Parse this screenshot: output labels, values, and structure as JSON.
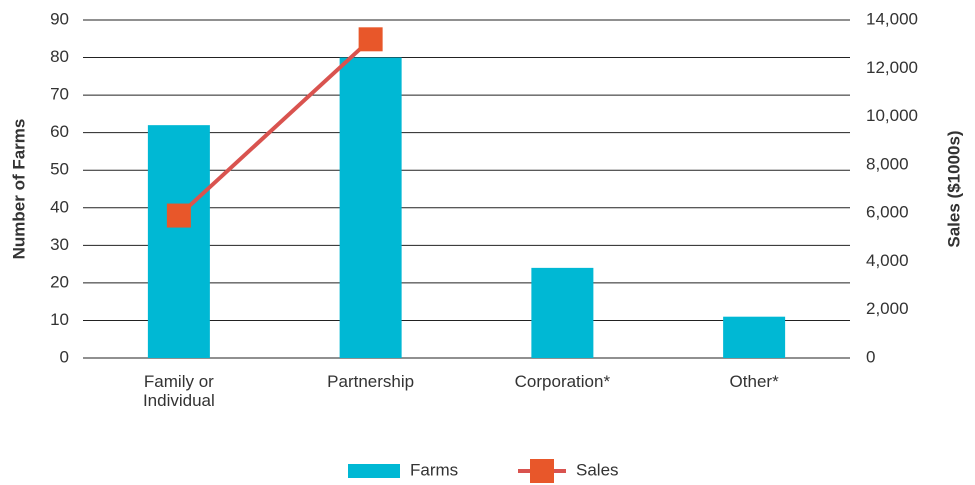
{
  "chart_data": {
    "type": "bar",
    "categories": [
      "Family or Individual",
      "Partnership",
      "Corporation*",
      "Other*"
    ],
    "series": [
      {
        "name": "Farms",
        "type": "bar",
        "color": "#00b8d4",
        "values": [
          62,
          80,
          24,
          11
        ]
      },
      {
        "name": "Sales",
        "type": "line",
        "axis": "y2",
        "color": "#d9534f",
        "marker_color": "#e8572a",
        "values": [
          5900,
          13200,
          null,
          null
        ]
      }
    ],
    "ylabel": "Number of Farms",
    "y2label": "Sales ($1000s)",
    "ylim": [
      0,
      90
    ],
    "yticks": [
      0,
      10,
      20,
      30,
      40,
      50,
      60,
      70,
      80,
      90
    ],
    "y2lim": [
      0,
      14000
    ],
    "y2ticks": [
      0,
      {
        "value": 2000,
        "label": "2,000"
      },
      {
        "value": 4000,
        "label": "4,000"
      },
      {
        "value": 6000,
        "label": "6,000"
      },
      {
        "value": 8000,
        "label": "8,000"
      },
      {
        "value": 10000,
        "label": "10,000"
      },
      {
        "value": 12000,
        "label": "12,000"
      },
      {
        "value": 14000,
        "label": "14,000"
      }
    ],
    "grid": true,
    "legend": "bottom"
  }
}
